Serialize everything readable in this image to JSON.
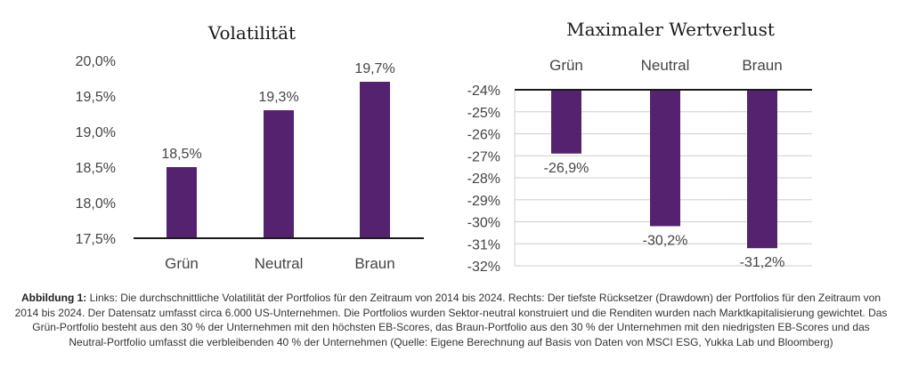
{
  "colors": {
    "bar": "#55226f",
    "grid": "#cfcfcf",
    "axis": "#1a1a1a"
  },
  "chart_data": [
    {
      "type": "bar",
      "title": "Volatilität",
      "categories": [
        "Grün",
        "Neutral",
        "Braun"
      ],
      "values": [
        18.5,
        19.3,
        19.7
      ],
      "data_labels": [
        "18,5%",
        "19,3%",
        "19,7%"
      ],
      "ylim": [
        17.5,
        20.0
      ],
      "yticks": [
        17.5,
        18.0,
        18.5,
        19.0,
        19.5,
        20.0
      ],
      "ytick_labels": [
        "17,5%",
        "18,0%",
        "18,5%",
        "19,0%",
        "19,5%",
        "20,0%"
      ],
      "grid": false,
      "legend": "none"
    },
    {
      "type": "bar",
      "title": "Maximaler Wertverlust",
      "categories": [
        "Grün",
        "Neutral",
        "Braun"
      ],
      "values": [
        -26.9,
        -30.2,
        -31.2
      ],
      "data_labels": [
        "-26,9%",
        "-30,2%",
        "-31,2%"
      ],
      "ylim": [
        -32,
        -24
      ],
      "yticks": [
        -24,
        -25,
        -26,
        -27,
        -28,
        -29,
        -30,
        -31,
        -32
      ],
      "ytick_labels": [
        "-24%",
        "-25%",
        "-26%",
        "-27%",
        "-28%",
        "-29%",
        "-30%",
        "-31%",
        "-32%"
      ],
      "grid": true,
      "legend": "none"
    }
  ],
  "caption": {
    "label": "Abbildung 1:",
    "text": "Links: Die durchschnittliche Volatilität der Portfolios für den Zeitraum von 2014 bis 2024. Rechts: Der tiefste Rücksetzer (Drawdown) der Portfolios für den Zeitraum von 2014 bis 2024. Der Datensatz umfasst circa 6.000 US-Unternehmen. Die Portfolios wurden Sektor-neutral konstruiert und die Renditen wurden nach Marktkapitalisierung gewichtet. Das Grün-Portfolio besteht aus den 30 % der Unternehmen mit den höchsten EB-Scores, das Braun-Portfolio aus den 30 % der Unternehmen mit den niedrigsten EB-Scores und das Neutral-Portfolio umfasst die verbleibenden 40 % der Unternehmen (Quelle: Eigene Berechnung auf Basis von Daten von MSCI ESG, Yukka Lab und Bloomberg)"
  }
}
